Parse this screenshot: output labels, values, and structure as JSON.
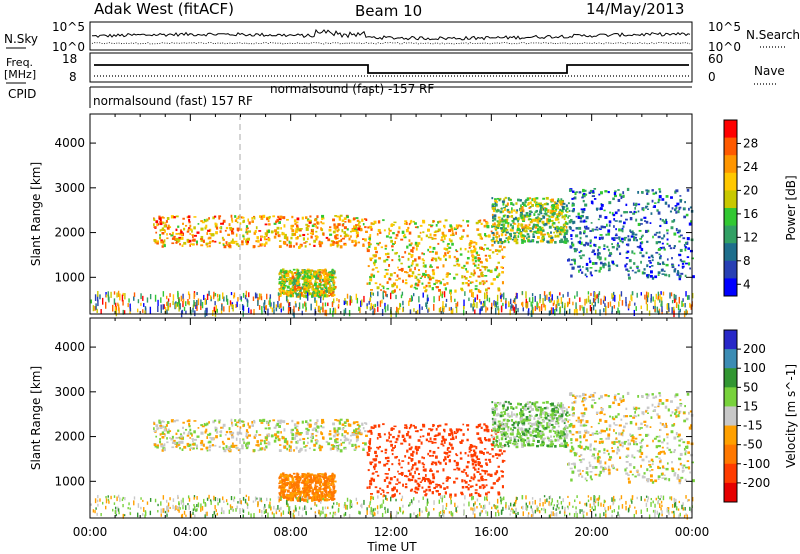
{
  "header": {
    "station": "Adak West (fitACF)",
    "beam": "Beam 10",
    "date": "14/May/2013"
  },
  "left_labels": {
    "nsky": "N.Sky",
    "freq_line1": "Freq.",
    "freq_line2": "[MHz]",
    "cpid": "CPID"
  },
  "right_labels": {
    "nsearch": "N.Search",
    "nave": "Nave"
  },
  "cpid_labels": [
    "normalsound (fast) 157 RF",
    "normalsound (fast) -157 RF"
  ],
  "noise_axis": {
    "left_ticks": [
      "10^5",
      "10^0"
    ],
    "right_ticks": [
      "10^5",
      "10^0"
    ]
  },
  "freq_axis": {
    "left_ticks": [
      "18",
      "8"
    ],
    "right_ticks": [
      "60",
      "0"
    ]
  },
  "panels": {
    "ylabel": "Slant Range [km]",
    "yticks": [
      "4000",
      "3000",
      "2000",
      "1000"
    ],
    "xticks": [
      "00:00",
      "04:00",
      "08:00",
      "12:00",
      "16:00",
      "20:00",
      "00:00"
    ],
    "xlabel": "Time UT"
  },
  "power_colorbar": {
    "label": "Power [dB]",
    "ticks": [
      "28",
      "24",
      "20",
      "16",
      "12",
      "8",
      "4"
    ],
    "colors": [
      "#ff0000",
      "#ff5a00",
      "#ff9600",
      "#ffc800",
      "#c8c800",
      "#32c832",
      "#32a064",
      "#1e6e8c",
      "#2840b4",
      "#0000ff"
    ]
  },
  "velocity_colorbar": {
    "label": "Velocity [m s^-1]",
    "ticks": [
      "200",
      "100",
      "50",
      "15",
      "-15",
      "-50",
      "-100",
      "-200"
    ],
    "colors": [
      "#2828c8",
      "#3c8cb4",
      "#329632",
      "#78d23c",
      "#c8c8c8",
      "#ffa000",
      "#ff7800",
      "#ff3c00",
      "#e60000"
    ]
  },
  "chart_data": [
    {
      "type": "heatmap",
      "title": "Adak West (fitACF) Beam 10 14/May/2013",
      "xlabel": "Time UT",
      "ylabel": "Slant Range [km]",
      "xlim": [
        "00:00",
        "24:00"
      ],
      "ylim": [
        180,
        4650
      ],
      "colorbar": {
        "label": "Power [dB]",
        "range": [
          0,
          30
        ]
      },
      "features": [
        {
          "region": "broad band",
          "time": [
            "02:30",
            "11:00"
          ],
          "range_km": [
            1700,
            2400
          ],
          "power_db": 22
        },
        {
          "region": "low patch",
          "time": [
            "07:30",
            "09:45"
          ],
          "range_km": [
            600,
            1200
          ],
          "power_db": 18
        },
        {
          "region": "central blob",
          "time": [
            "11:00",
            "16:30"
          ],
          "range_km": [
            700,
            2300
          ],
          "power_db": 20
        },
        {
          "region": "right band",
          "time": [
            "16:00",
            "19:00"
          ],
          "range_km": [
            1800,
            2800
          ],
          "power_db": 15
        },
        {
          "region": "far arcs",
          "time": [
            "19:00",
            "24:00"
          ],
          "range_km": [
            1000,
            3000
          ],
          "power_db": 6
        }
      ]
    },
    {
      "type": "heatmap",
      "title": "",
      "xlabel": "Time UT",
      "ylabel": "Slant Range [km]",
      "xlim": [
        "00:00",
        "24:00"
      ],
      "ylim": [
        180,
        4650
      ],
      "colorbar": {
        "label": "Velocity [m s^-1]",
        "range": [
          -200,
          200
        ]
      },
      "features": [
        {
          "region": "broad band",
          "time": [
            "02:30",
            "11:00"
          ],
          "range_km": [
            1700,
            2400
          ],
          "velocity_ms": 0
        },
        {
          "region": "low patch",
          "time": [
            "07:30",
            "09:45"
          ],
          "range_km": [
            600,
            1200
          ],
          "velocity_ms": -60
        },
        {
          "region": "central blob",
          "time": [
            "11:00",
            "16:30"
          ],
          "range_km": [
            700,
            2300
          ],
          "velocity_ms": -150
        },
        {
          "region": "right band",
          "time": [
            "16:00",
            "19:00"
          ],
          "range_km": [
            1800,
            2800
          ],
          "velocity_ms": 30
        },
        {
          "region": "far arcs",
          "time": [
            "19:00",
            "24:00"
          ],
          "range_km": [
            1000,
            3000
          ],
          "velocity_ms": 0
        }
      ]
    }
  ]
}
